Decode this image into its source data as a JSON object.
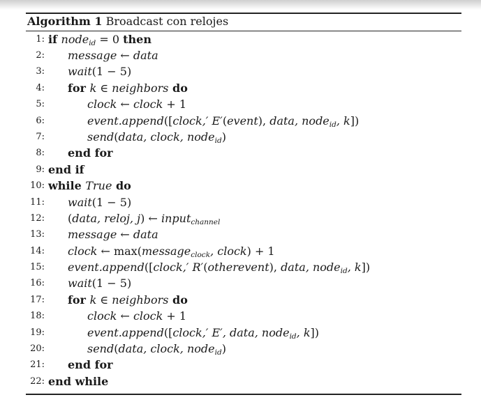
{
  "caption": {
    "label": "Algorithm 1",
    "title": "Broadcast con relojes"
  },
  "lines": [
    {
      "n": "1:",
      "parts": [
        [
          "kw",
          "if "
        ],
        [
          "it",
          "node"
        ],
        [
          "sub",
          "id"
        ],
        [
          "",
          " = 0 "
        ],
        [
          "kw",
          "then"
        ]
      ]
    },
    {
      "n": "2:",
      "indent": 1,
      "parts": [
        [
          "it",
          "message"
        ],
        [
          "",
          " ← "
        ],
        [
          "it",
          "data"
        ]
      ]
    },
    {
      "n": "3:",
      "indent": 1,
      "parts": [
        [
          "it",
          "wait"
        ],
        [
          "",
          "(1 − 5)"
        ]
      ]
    },
    {
      "n": "4:",
      "indent": 1,
      "parts": [
        [
          "kw",
          "for "
        ],
        [
          "it",
          "k"
        ],
        [
          "",
          " ∈ "
        ],
        [
          "it",
          "neighbors"
        ],
        [
          "kw",
          " do"
        ]
      ]
    },
    {
      "n": "5:",
      "indent": 2,
      "parts": [
        [
          "it",
          "clock"
        ],
        [
          "",
          " ← "
        ],
        [
          "it",
          "clock"
        ],
        [
          "",
          " + 1"
        ]
      ]
    },
    {
      "n": "6:",
      "indent": 2,
      "parts": [
        [
          "it",
          "event.append"
        ],
        [
          "",
          "(["
        ],
        [
          "it",
          "clock,′ E′"
        ],
        [
          "",
          "("
        ],
        [
          "it",
          "event"
        ],
        [
          "",
          "), "
        ],
        [
          "it",
          "data, node"
        ],
        [
          "sub",
          "id"
        ],
        [
          "it",
          ", k"
        ],
        [
          "",
          "])"
        ]
      ]
    },
    {
      "n": "7:",
      "indent": 2,
      "parts": [
        [
          "it",
          "send"
        ],
        [
          "",
          "("
        ],
        [
          "it",
          "data, clock, node"
        ],
        [
          "sub",
          "id"
        ],
        [
          "",
          ")"
        ]
      ]
    },
    {
      "n": "8:",
      "indent": 1,
      "parts": [
        [
          "kw",
          "end for"
        ]
      ]
    },
    {
      "n": "9:",
      "parts": [
        [
          "kw",
          "end if"
        ]
      ]
    },
    {
      "n": "10:",
      "parts": [
        [
          "kw",
          "while "
        ],
        [
          "it",
          "True"
        ],
        [
          "kw",
          " do"
        ]
      ]
    },
    {
      "n": "11:",
      "indent": 1,
      "parts": [
        [
          "it",
          "wait"
        ],
        [
          "",
          "(1 − 5)"
        ]
      ]
    },
    {
      "n": "12:",
      "indent": 1,
      "parts": [
        [
          "",
          "("
        ],
        [
          "it",
          "data, reloj, j"
        ],
        [
          "",
          ") ← "
        ],
        [
          "it",
          "input"
        ],
        [
          "sub",
          "channel"
        ]
      ]
    },
    {
      "n": "13:",
      "indent": 1,
      "parts": [
        [
          "it",
          "message"
        ],
        [
          "",
          " ← "
        ],
        [
          "it",
          "data"
        ]
      ]
    },
    {
      "n": "14:",
      "indent": 1,
      "parts": [
        [
          "it",
          "clock"
        ],
        [
          "",
          " ← max("
        ],
        [
          "it",
          "message"
        ],
        [
          "sub",
          "clock"
        ],
        [
          "it",
          ", clock"
        ],
        [
          "",
          ") + 1"
        ]
      ]
    },
    {
      "n": "15:",
      "indent": 1,
      "parts": [
        [
          "it",
          "event.append"
        ],
        [
          "",
          "(["
        ],
        [
          "it",
          "clock,′ R′"
        ],
        [
          "",
          "("
        ],
        [
          "it",
          "otherevent"
        ],
        [
          "",
          "), "
        ],
        [
          "it",
          "data, node"
        ],
        [
          "sub",
          "id"
        ],
        [
          "it",
          ", k"
        ],
        [
          "",
          "])"
        ]
      ]
    },
    {
      "n": "16:",
      "indent": 1,
      "parts": [
        [
          "it",
          "wait"
        ],
        [
          "",
          "(1 − 5)"
        ]
      ]
    },
    {
      "n": "17:",
      "indent": 1,
      "parts": [
        [
          "kw",
          "for "
        ],
        [
          "it",
          "k"
        ],
        [
          "",
          " ∈ "
        ],
        [
          "it",
          "neighbors"
        ],
        [
          "kw",
          " do"
        ]
      ]
    },
    {
      "n": "18:",
      "indent": 2,
      "parts": [
        [
          "it",
          "clock"
        ],
        [
          "",
          " ← "
        ],
        [
          "it",
          "clock"
        ],
        [
          "",
          " + 1"
        ]
      ]
    },
    {
      "n": "19:",
      "indent": 2,
      "parts": [
        [
          "it",
          "event.append"
        ],
        [
          "",
          "(["
        ],
        [
          "it",
          "clock,′ E′, data, node"
        ],
        [
          "sub",
          "id"
        ],
        [
          "it",
          ", k"
        ],
        [
          "",
          "])"
        ]
      ]
    },
    {
      "n": "20:",
      "indent": 2,
      "parts": [
        [
          "it",
          "send"
        ],
        [
          "",
          "("
        ],
        [
          "it",
          "data, clock, node"
        ],
        [
          "sub",
          "id"
        ],
        [
          "",
          ")"
        ]
      ]
    },
    {
      "n": "21:",
      "indent": 1,
      "parts": [
        [
          "kw",
          "end for"
        ]
      ]
    },
    {
      "n": "22:",
      "parts": [
        [
          "kw",
          "end while"
        ]
      ]
    }
  ]
}
